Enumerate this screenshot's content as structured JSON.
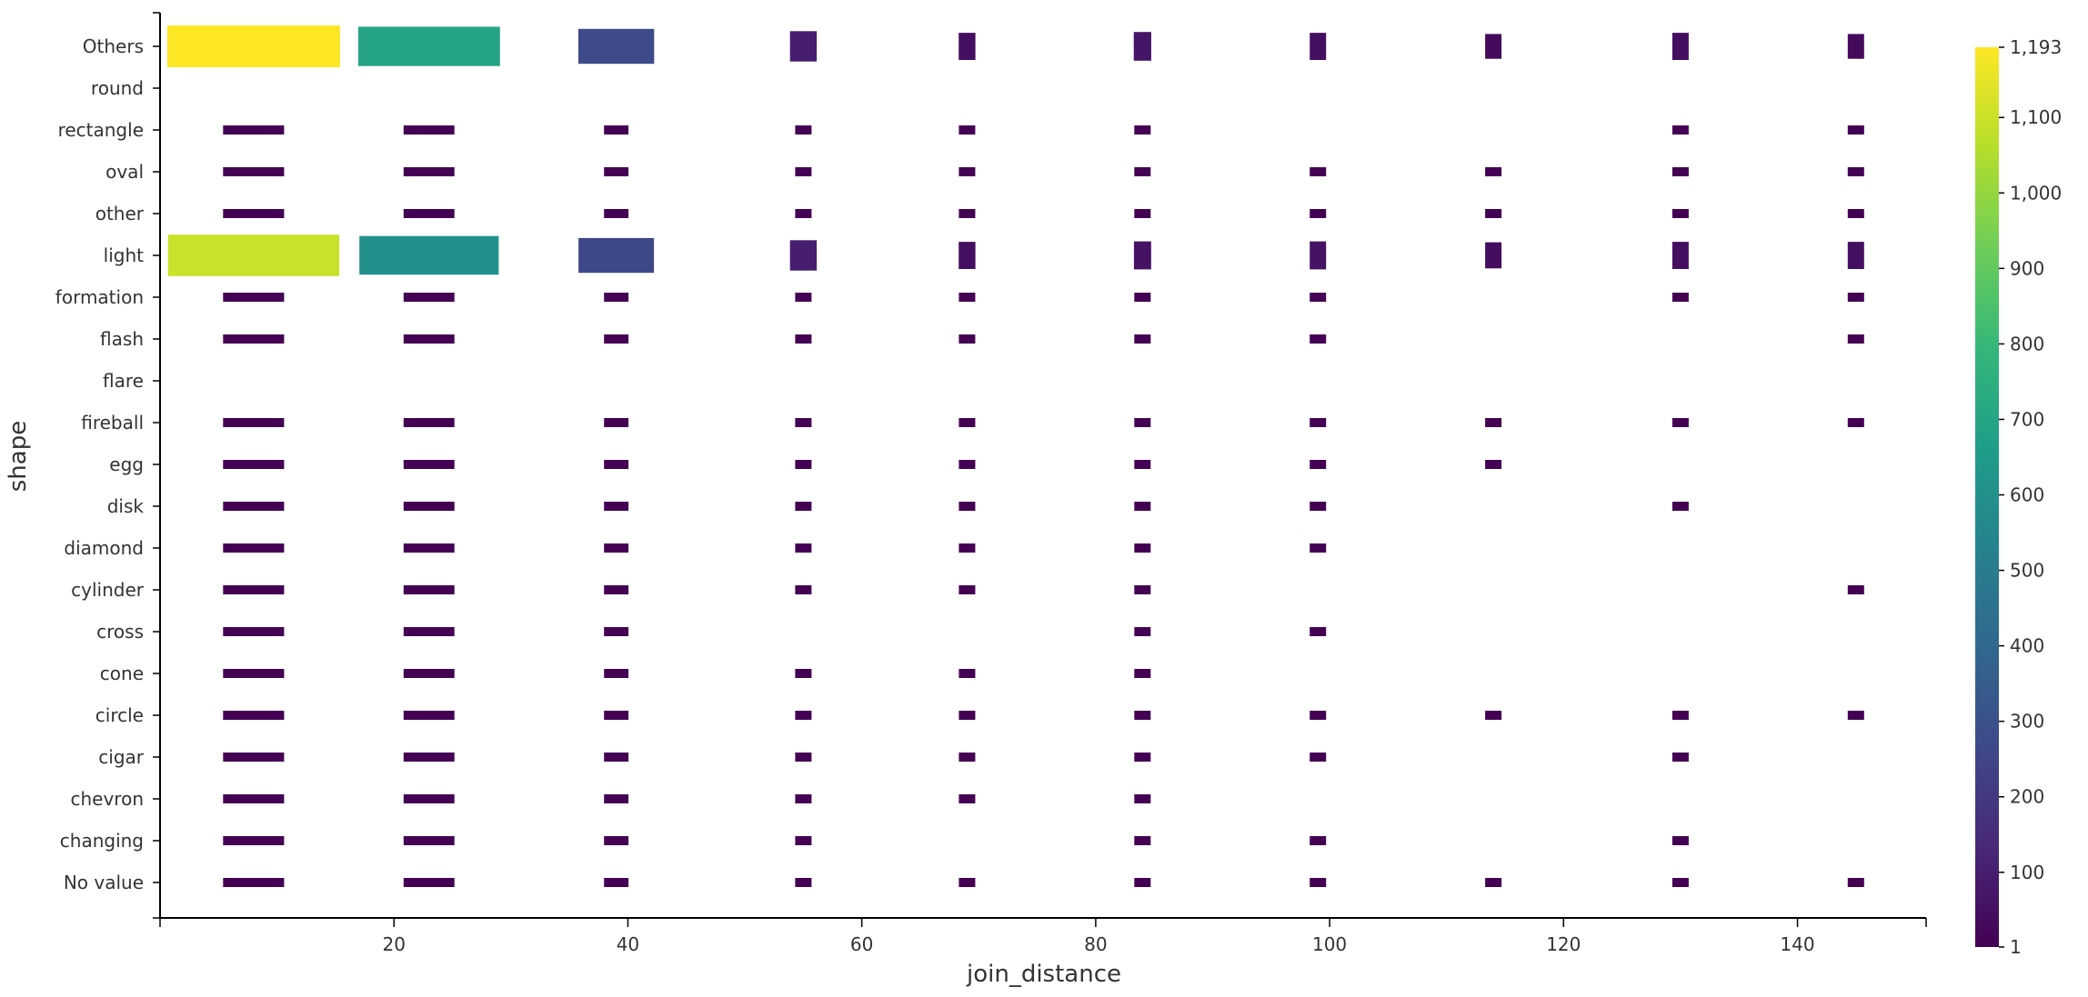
{
  "chart_data": {
    "type": "heatmap",
    "title": "",
    "xlabel": "join_distance",
    "ylabel": "shape",
    "xlim": [
      0,
      151
    ],
    "x_ticks": [
      20,
      40,
      60,
      80,
      100,
      120,
      140
    ],
    "x_tick_labels": [
      "20",
      "40",
      "60",
      "80",
      "100",
      "120",
      "140"
    ],
    "bin_centers": [
      8,
      23,
      39,
      55,
      69,
      84,
      99,
      114,
      130,
      145
    ],
    "shapes": [
      "Others",
      "round",
      "rectangle",
      "oval",
      "other",
      "light",
      "formation",
      "flash",
      "flare",
      "fireball",
      "egg",
      "disk",
      "diamond",
      "cylinder",
      "cross",
      "cone",
      "circle",
      "cigar",
      "chevron",
      "changing",
      "No value"
    ],
    "values": [
      [
        1193,
        700,
        270,
        100,
        50,
        70,
        50,
        30,
        50,
        30
      ],
      [
        null,
        null,
        null,
        null,
        null,
        null,
        null,
        null,
        null,
        null
      ],
      [
        1,
        1,
        1,
        1,
        1,
        1,
        null,
        null,
        1,
        1
      ],
      [
        1,
        1,
        1,
        1,
        1,
        1,
        1,
        1,
        1,
        1
      ],
      [
        1,
        1,
        1,
        1,
        1,
        1,
        1,
        1,
        1,
        1
      ],
      [
        1100,
        600,
        260,
        100,
        50,
        60,
        60,
        40,
        50,
        50
      ],
      [
        1,
        1,
        1,
        1,
        1,
        1,
        1,
        null,
        1,
        1
      ],
      [
        1,
        1,
        1,
        1,
        1,
        1,
        1,
        null,
        null,
        1
      ],
      [
        null,
        null,
        null,
        null,
        null,
        null,
        null,
        null,
        null,
        null
      ],
      [
        1,
        1,
        1,
        1,
        1,
        1,
        1,
        1,
        1,
        1
      ],
      [
        1,
        1,
        1,
        1,
        1,
        1,
        1,
        1,
        null,
        null
      ],
      [
        1,
        1,
        1,
        1,
        1,
        1,
        1,
        null,
        1,
        null
      ],
      [
        1,
        1,
        1,
        1,
        1,
        1,
        1,
        null,
        null,
        null
      ],
      [
        1,
        1,
        1,
        1,
        1,
        1,
        null,
        null,
        null,
        1
      ],
      [
        1,
        1,
        1,
        null,
        null,
        1,
        1,
        null,
        null,
        null
      ],
      [
        1,
        1,
        1,
        1,
        1,
        1,
        null,
        null,
        null,
        null
      ],
      [
        1,
        1,
        1,
        1,
        1,
        1,
        1,
        1,
        1,
        1
      ],
      [
        1,
        1,
        1,
        1,
        1,
        1,
        1,
        null,
        1,
        null
      ],
      [
        1,
        1,
        1,
        1,
        1,
        1,
        null,
        null,
        null,
        null
      ],
      [
        1,
        1,
        1,
        1,
        null,
        1,
        1,
        null,
        1,
        null
      ],
      [
        1,
        1,
        1,
        1,
        1,
        1,
        1,
        1,
        1,
        1
      ]
    ],
    "colorbar": {
      "min": 1,
      "max": 1193,
      "tick_values": [
        1,
        100,
        200,
        300,
        400,
        500,
        600,
        700,
        800,
        900,
        1000,
        1100,
        1193
      ],
      "tick_labels": [
        "1",
        "100",
        "200",
        "300",
        "400",
        "500",
        "600",
        "700",
        "800",
        "900",
        "1,000",
        "1,100",
        "1,193"
      ],
      "colormap": "viridis",
      "colors": [
        "#440154",
        "#482878",
        "#3e4989",
        "#31688e",
        "#26828e",
        "#1f9e89",
        "#35b779",
        "#6ece58",
        "#b5de2b",
        "#fde725"
      ]
    },
    "grid": false,
    "legend": "right"
  }
}
